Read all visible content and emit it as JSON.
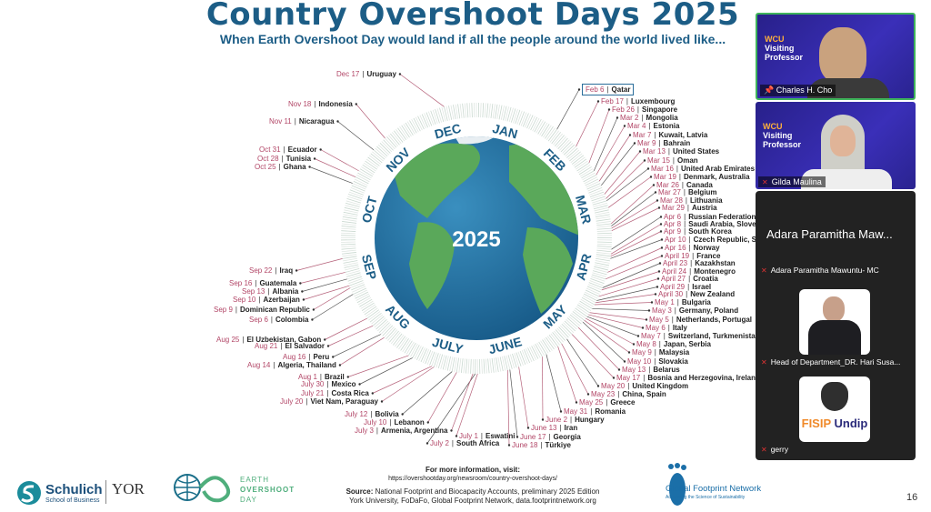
{
  "slide": {
    "title": "Country Overshoot Days 2025",
    "subtitle": "When Earth Overshoot Day would land if all the people around the world lived like...",
    "center_year": "2025",
    "page_number": "16",
    "footer": {
      "more_info": "For more information, visit:",
      "url": "https://overshootday.org/newsroom/country-overshoot-days/",
      "source_label": "Source:",
      "source_text": "National Footprint and Biocapacity Accounts, preliminary 2025 Edition",
      "source_line2": "York University, FoDaFo, Global Footprint Network, data.footprintnetwork.org"
    },
    "logos": {
      "schulich": "Schulich",
      "schulich_sub": "School of Business",
      "york": "YOR",
      "eod_1": "EARTH",
      "eod_2": "OVERSHOOT",
      "eod_3": "DAY",
      "gfn": "Global Footprint Network",
      "gfn_sub": "Advancing the Science of Sustainability"
    },
    "colors": {
      "title": "#1c5d86",
      "date": "#b24667",
      "globe_ocean": "#1f6c9c",
      "land": "#5aa85a"
    }
  },
  "chart_data": {
    "type": "radial-timeline",
    "title": "Country Overshoot Days 2025",
    "months": [
      "JAN",
      "FEB",
      "MAR",
      "APR",
      "MAY",
      "JUNE",
      "JULY",
      "AUG",
      "SEP",
      "OCT",
      "NOV",
      "DEC"
    ],
    "labels": [
      {
        "date": "Feb 6",
        "country": "Qatar",
        "doy": 37
      },
      {
        "date": "Feb 17",
        "country": "Luxembourg",
        "doy": 48
      },
      {
        "date": "Feb 26",
        "country": "Singapore",
        "doy": 57
      },
      {
        "date": "Mar 2",
        "country": "Mongolia",
        "doy": 61
      },
      {
        "date": "Mar 4",
        "country": "Estonia",
        "doy": 63
      },
      {
        "date": "Mar 7",
        "country": "Kuwait, Latvia",
        "doy": 66
      },
      {
        "date": "Mar 9",
        "country": "Bahrain",
        "doy": 68
      },
      {
        "date": "Mar 13",
        "country": "United States",
        "doy": 72
      },
      {
        "date": "Mar 15",
        "country": "Oman",
        "doy": 74
      },
      {
        "date": "Mar 16",
        "country": "United Arab Emirates",
        "doy": 75
      },
      {
        "date": "Mar 19",
        "country": "Denmark, Australia",
        "doy": 78
      },
      {
        "date": "Mar 26",
        "country": "Canada",
        "doy": 85
      },
      {
        "date": "Mar 27",
        "country": "Belgium",
        "doy": 86
      },
      {
        "date": "Mar 28",
        "country": "Lithuania",
        "doy": 87
      },
      {
        "date": "Mar 29",
        "country": "Austria",
        "doy": 88
      },
      {
        "date": "Apr 6",
        "country": "Russian Federation, F",
        "doy": 96
      },
      {
        "date": "Apr 8",
        "country": "Saudi Arabia, Sloven",
        "doy": 98
      },
      {
        "date": "Apr 9",
        "country": "South Korea",
        "doy": 99
      },
      {
        "date": "Apr 10",
        "country": "Czech Republic, Sw",
        "doy": 100
      },
      {
        "date": "Apr 16",
        "country": "Norway",
        "doy": 106
      },
      {
        "date": "April 19",
        "country": "France",
        "doy": 109
      },
      {
        "date": "April 23",
        "country": "Kazakhstan",
        "doy": 113
      },
      {
        "date": "April 24",
        "country": "Montenegro",
        "doy": 114
      },
      {
        "date": "April 27",
        "country": "Croatia",
        "doy": 117
      },
      {
        "date": "April 29",
        "country": "Israel",
        "doy": 119
      },
      {
        "date": "April 30",
        "country": "New Zealand",
        "doy": 120
      },
      {
        "date": "May 1",
        "country": "Bulgaria",
        "doy": 121
      },
      {
        "date": "May 3",
        "country": "Germany, Poland",
        "doy": 123
      },
      {
        "date": "May 5",
        "country": "Netherlands, Portugal",
        "doy": 125
      },
      {
        "date": "May 6",
        "country": "Italy",
        "doy": 126
      },
      {
        "date": "May 7",
        "country": "Switzerland, Turkmenistan",
        "doy": 127
      },
      {
        "date": "May 8",
        "country": "Japan, Serbia",
        "doy": 128
      },
      {
        "date": "May 9",
        "country": "Malaysia",
        "doy": 129
      },
      {
        "date": "May 10",
        "country": "Slovakia",
        "doy": 130
      },
      {
        "date": "May 13",
        "country": "Belarus",
        "doy": 133
      },
      {
        "date": "May 17",
        "country": "Bosnia and Herzegovina, Ireland, C",
        "doy": 137
      },
      {
        "date": "May 20",
        "country": "United Kingdom",
        "doy": 140
      },
      {
        "date": "May 23",
        "country": "China, Spain",
        "doy": 143
      },
      {
        "date": "May 25",
        "country": "Greece",
        "doy": 145
      },
      {
        "date": "May 31",
        "country": "Romania",
        "doy": 151
      },
      {
        "date": "June 2",
        "country": "Hungary",
        "doy": 153
      },
      {
        "date": "June 13",
        "country": "Iran",
        "doy": 164
      },
      {
        "date": "June 17",
        "country": "Georgia",
        "doy": 168
      },
      {
        "date": "June 18",
        "country": "Türkiye",
        "doy": 169
      },
      {
        "date": "July 1",
        "country": "Eswatini",
        "doy": 182
      },
      {
        "date": "July 2",
        "country": "South Africa",
        "doy": 183
      },
      {
        "date": "July 3",
        "country": "Armenia, Argentina",
        "doy": 184
      },
      {
        "date": "July 10",
        "country": "Lebanon",
        "doy": 191
      },
      {
        "date": "July 12",
        "country": "Bolivia",
        "doy": 193
      },
      {
        "date": "July 20",
        "country": "Viet Nam, Paraguay",
        "doy": 201
      },
      {
        "date": "July 21",
        "country": "Costa Rica",
        "doy": 202
      },
      {
        "date": "July 30",
        "country": "Mexico",
        "doy": 211
      },
      {
        "date": "Aug 1",
        "country": "Brazil",
        "doy": 213
      },
      {
        "date": "Aug 14",
        "country": "Algeria, Thailand",
        "doy": 226
      },
      {
        "date": "Aug 16",
        "country": "Peru",
        "doy": 228
      },
      {
        "date": "Aug 21",
        "country": "El Salvador",
        "doy": 233
      },
      {
        "date": "Aug 25",
        "country": "El Uzbekistan, Gabon",
        "doy": 237
      },
      {
        "date": "Sep 6",
        "country": "Colombia",
        "doy": 249
      },
      {
        "date": "Sep 9",
        "country": "Dominican Republic",
        "doy": 252
      },
      {
        "date": "Sep 10",
        "country": "Azerbaijan",
        "doy": 253
      },
      {
        "date": "Sep 13",
        "country": "Albania",
        "doy": 256
      },
      {
        "date": "Sep 16",
        "country": "Guatemala",
        "doy": 259
      },
      {
        "date": "Sep 22",
        "country": "Iraq",
        "doy": 265
      },
      {
        "date": "Oct 25",
        "country": "Ghana",
        "doy": 298
      },
      {
        "date": "Oct 28",
        "country": "Tunisia",
        "doy": 301
      },
      {
        "date": "Oct 31",
        "country": "Ecuador",
        "doy": 304
      },
      {
        "date": "Nov 11",
        "country": "Nicaragua",
        "doy": 315
      },
      {
        "date": "Nov 18",
        "country": "Indonesia",
        "doy": 322
      },
      {
        "date": "Dec 17",
        "country": "Uruguay",
        "doy": 351
      }
    ]
  },
  "video_panel": {
    "tiles": [
      {
        "name": "Charles H. Cho",
        "banner_1": "WCU",
        "banner_2": "Visiting",
        "banner_3": "Professor",
        "pinned": true
      },
      {
        "name": "Gilda Maulina",
        "banner_1": "WCU",
        "banner_2": "Visiting",
        "banner_3": "Professor",
        "muted": true
      }
    ],
    "speaker_display": "Adara Paramitha Maw...",
    "participants": [
      {
        "name": "Adara Paramitha Mawuntu- MC",
        "muted": true
      },
      {
        "name": "Head of Department_DR. Hari Susa...",
        "muted": true
      },
      {
        "name": "gerry",
        "muted": true
      }
    ],
    "fisip_logo_1": "FISIP",
    "fisip_logo_2": "Undip"
  }
}
